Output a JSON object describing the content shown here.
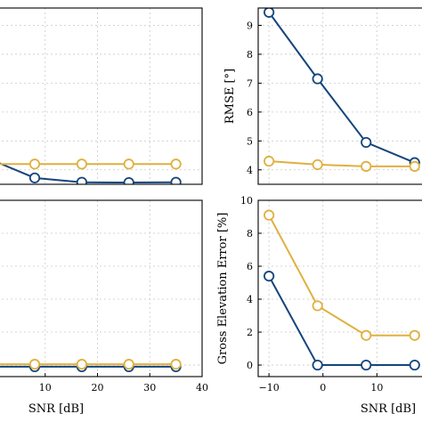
{
  "colors": {
    "blue": "#14457d",
    "gold": "#e0b03f"
  },
  "chart_data": [
    {
      "type": "line",
      "panel": "top-left",
      "xlim": [
        0,
        40
      ],
      "ylim": [
        3.5,
        9.6
      ],
      "xticks": [],
      "yticks": [],
      "ylabel": "",
      "xlabel": "",
      "grid": true,
      "series": [
        {
          "color": "blue",
          "x": [
            -1,
            8,
            17,
            26,
            35
          ],
          "y": [
            4.4,
            3.72,
            3.57,
            3.56,
            3.57
          ]
        },
        {
          "color": "gold",
          "x": [
            -1,
            8,
            17,
            26,
            35
          ],
          "y": [
            4.2,
            4.2,
            4.2,
            4.2,
            4.2
          ]
        }
      ]
    },
    {
      "type": "line",
      "panel": "top-right",
      "xlim": [
        -12,
        21
      ],
      "ylim": [
        3.5,
        9.6
      ],
      "xticks": [],
      "yticks": [
        4,
        5,
        6,
        7,
        8,
        9
      ],
      "ylabel": "RMSE [°]",
      "xlabel": "",
      "grid": true,
      "series": [
        {
          "color": "blue",
          "x": [
            -10,
            -1,
            8,
            17
          ],
          "y": [
            9.45,
            7.15,
            4.95,
            4.25
          ]
        },
        {
          "color": "gold",
          "x": [
            -10,
            -1,
            8,
            17
          ],
          "y": [
            4.3,
            4.18,
            4.12,
            4.12
          ]
        }
      ]
    },
    {
      "type": "line",
      "panel": "bottom-left",
      "xlim": [
        0,
        40
      ],
      "ylim": [
        -0.7,
        10
      ],
      "xticks": [
        10,
        20,
        30,
        40
      ],
      "yticks": [],
      "ylabel": "",
      "xlabel": "SNR [dB]",
      "grid": true,
      "series": [
        {
          "color": "blue",
          "x": [
            -1,
            8,
            17,
            26,
            35
          ],
          "y": [
            -0.1,
            -0.1,
            -0.1,
            -0.1,
            -0.1
          ]
        },
        {
          "color": "gold",
          "x": [
            -1,
            8,
            17,
            26,
            35
          ],
          "y": [
            0.05,
            0.05,
            0.05,
            0.05,
            0.05
          ]
        }
      ]
    },
    {
      "type": "line",
      "panel": "bottom-right",
      "xlim": [
        -12,
        21
      ],
      "ylim": [
        -0.7,
        10
      ],
      "xticks": [
        -10,
        0,
        10
      ],
      "yticks": [
        0,
        2,
        4,
        6,
        8,
        10
      ],
      "ylabel": "Gross Elevation Error [%]",
      "xlabel": "SNR [dB]",
      "grid": true,
      "series": [
        {
          "color": "blue",
          "x": [
            -10,
            -1,
            8,
            17
          ],
          "y": [
            5.4,
            0,
            0,
            0
          ]
        },
        {
          "color": "gold",
          "x": [
            -10,
            -1,
            8,
            17
          ],
          "y": [
            9.1,
            3.6,
            1.8,
            1.8
          ]
        }
      ]
    }
  ]
}
